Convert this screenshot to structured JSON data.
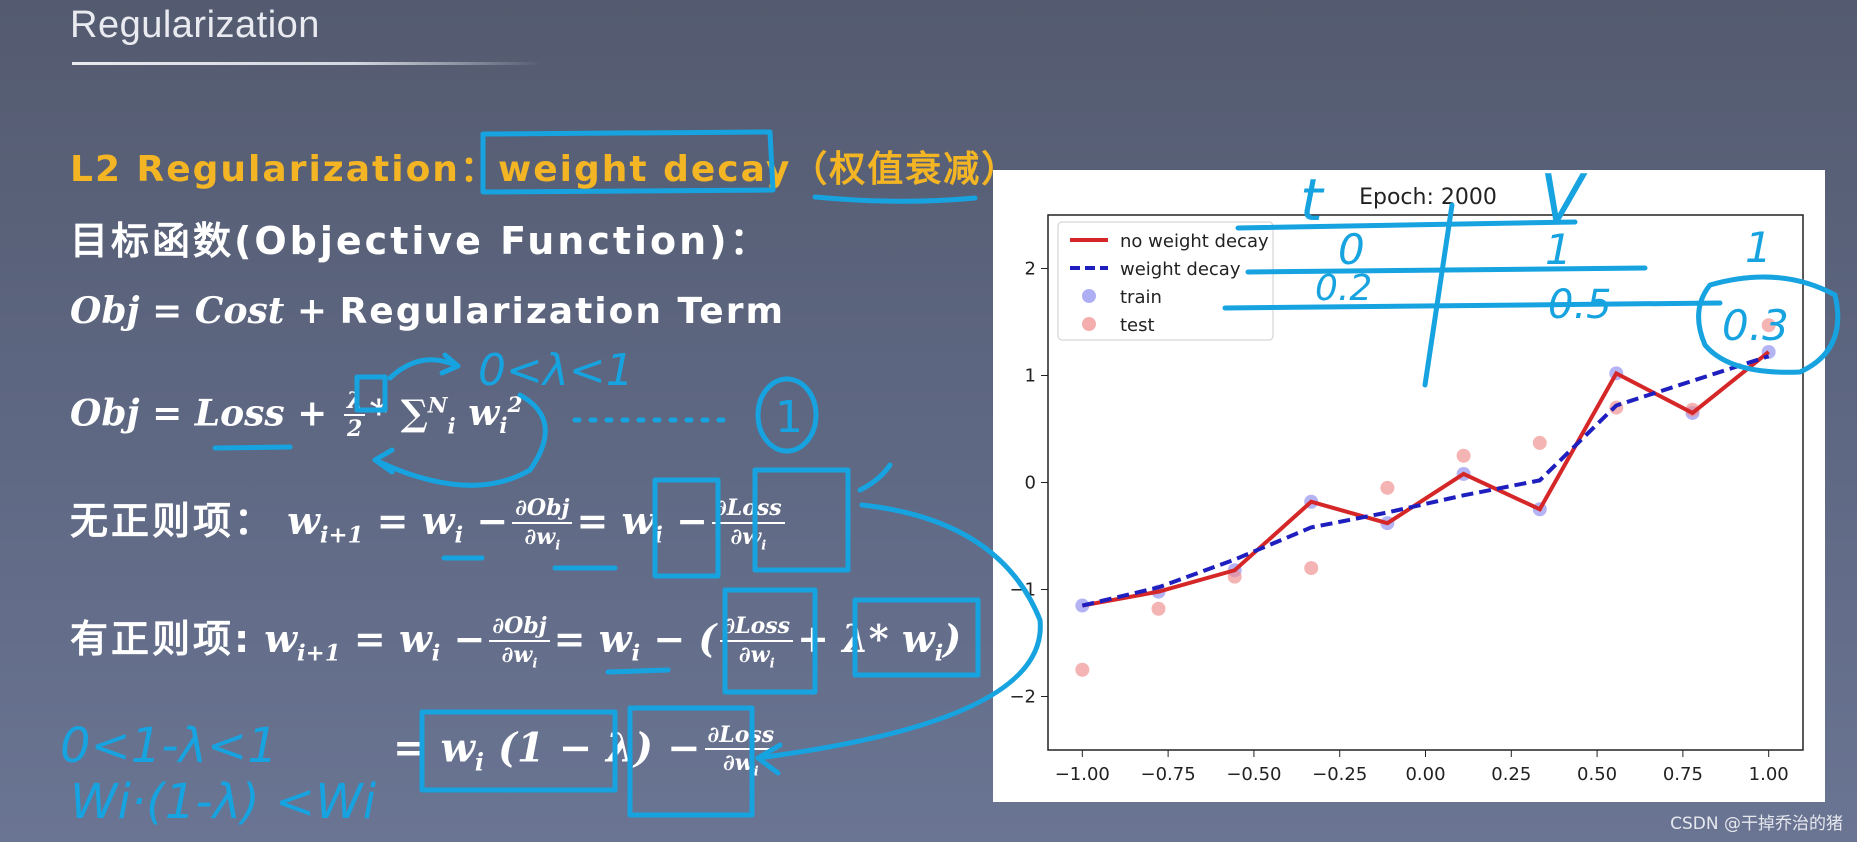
{
  "slide": {
    "title": "Regularization",
    "l2_prefix": "L2 Regularization：",
    "l2_boxed": "weight decay",
    "l2_suffix": "（权值衰减）",
    "objective_label": "目标函数(Objective Function)：",
    "eq1_lhs": "Obj = Cost + ",
    "eq1_rhs": "Regularization Term",
    "eq2_lhs": "Obj = Loss + ",
    "eq2_lambda": "λ",
    "eq2_two": "2",
    "eq2_rest": "* ∑",
    "eq3_label": "无正则项：",
    "eq4_label": "有正则项:",
    "eq4_lambda_term": "λ* w",
    "eq5_body": "= w",
    "eq5_factor": "(1 − λ)"
  },
  "handwriting": {
    "lambda_range": "0<λ<1",
    "circle_one": "1",
    "factor_range": "0<1-λ<1",
    "weight_ineq": "Wi·(1-λ) <Wi",
    "table_h1": "t",
    "table_h2": "V",
    "table_r1c1": "0",
    "table_r1c2": "1",
    "table_r1c3": "1",
    "table_r2c1": "0.2",
    "table_r2c2": "0.5",
    "table_r2c3": "0.3"
  },
  "chart_data": {
    "type": "line",
    "title": "Epoch: 2000",
    "xlim": [
      -1.1,
      1.1
    ],
    "ylim": [
      -2.5,
      2.5
    ],
    "xticks": [
      "−1.00",
      "−0.75",
      "−0.50",
      "−0.25",
      "0.00",
      "0.25",
      "0.50",
      "0.75",
      "1.00"
    ],
    "xtick_values": [
      -1.0,
      -0.75,
      -0.5,
      -0.25,
      0.0,
      0.25,
      0.5,
      0.75,
      1.0
    ],
    "yticks": [
      "2",
      "1",
      "0",
      "−1",
      "−2"
    ],
    "ytick_values": [
      2,
      1,
      0,
      -1,
      -2
    ],
    "legend_position": "top-left",
    "legend": [
      "no weight decay",
      "weight decay",
      "train",
      "test"
    ],
    "colors": {
      "no_weight_decay": "#d62728",
      "weight_decay": "#1f1fbf",
      "train": "#8c8cf0",
      "test": "#f08c8c"
    },
    "series": [
      {
        "name": "no weight decay",
        "style": "solid",
        "x": [
          -1.0,
          -0.778,
          -0.556,
          -0.333,
          -0.111,
          0.111,
          0.333,
          0.556,
          0.778,
          1.0
        ],
        "y": [
          -1.15,
          -1.02,
          -0.82,
          -0.18,
          -0.38,
          0.08,
          -0.25,
          1.02,
          0.65,
          1.22
        ]
      },
      {
        "name": "weight decay",
        "style": "dashed",
        "x": [
          -1.0,
          -0.778,
          -0.556,
          -0.333,
          -0.111,
          0.111,
          0.333,
          0.556,
          0.778,
          1.0
        ],
        "y": [
          -1.15,
          -0.98,
          -0.72,
          -0.42,
          -0.28,
          -0.12,
          0.02,
          0.72,
          0.95,
          1.18
        ]
      },
      {
        "name": "train",
        "x": [
          -1.0,
          -0.778,
          -0.556,
          -0.333,
          -0.111,
          0.111,
          0.333,
          0.556,
          0.778,
          1.0
        ],
        "y": [
          -1.15,
          -1.02,
          -0.82,
          -0.18,
          -0.38,
          0.08,
          -0.25,
          1.02,
          0.65,
          1.22
        ]
      },
      {
        "name": "test",
        "x": [
          -1.0,
          -0.778,
          -0.556,
          -0.333,
          -0.111,
          0.111,
          0.333,
          0.556,
          0.778,
          1.0
        ],
        "y": [
          -1.75,
          -1.18,
          -0.88,
          -0.8,
          -0.05,
          0.25,
          0.37,
          0.7,
          0.68,
          1.47
        ]
      }
    ]
  },
  "watermark": "CSDN @干掉乔治的猪"
}
